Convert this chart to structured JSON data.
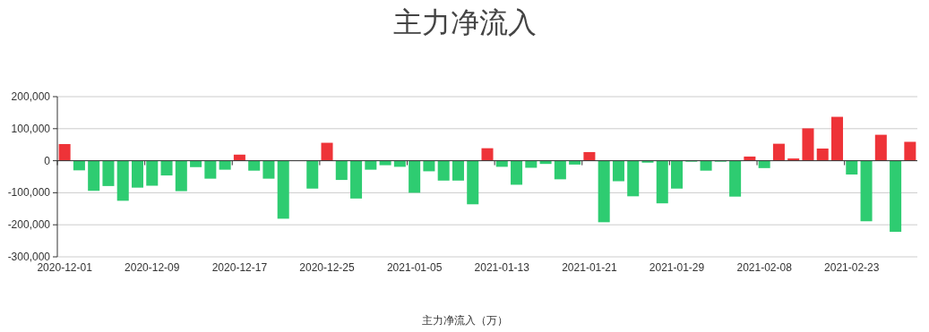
{
  "chart_data": {
    "type": "bar",
    "title": "主力净流入",
    "xlabel": "主力净流入（万）",
    "categories": [
      "2020-12-01",
      null,
      null,
      null,
      null,
      null,
      "2020-12-09",
      null,
      null,
      null,
      null,
      null,
      "2020-12-17",
      null,
      null,
      null,
      null,
      null,
      "2020-12-25",
      null,
      null,
      null,
      null,
      null,
      "2021-01-05",
      null,
      null,
      null,
      null,
      null,
      "2021-01-13",
      null,
      null,
      null,
      null,
      null,
      "2021-01-21",
      null,
      null,
      null,
      null,
      null,
      "2021-01-29",
      null,
      null,
      null,
      null,
      null,
      "2021-02-08",
      null,
      null,
      null,
      null,
      null,
      "2021-02-23",
      null,
      null,
      null,
      null
    ],
    "values": [
      52000,
      -30000,
      -94000,
      -79000,
      -125000,
      -84000,
      -78000,
      -46000,
      -95000,
      -20000,
      -56000,
      -28000,
      19000,
      -31000,
      -56000,
      -181000,
      null,
      -87000,
      56000,
      -60000,
      -118000,
      -28000,
      -14000,
      -19000,
      -100000,
      -33000,
      -62000,
      -62000,
      -136000,
      39000,
      -19000,
      -75000,
      -22000,
      -10000,
      -58000,
      -12000,
      27000,
      -192000,
      -64000,
      -111000,
      -6000,
      -133000,
      -87000,
      -3000,
      -31000,
      -3000,
      -112000,
      13000,
      -23000,
      53000,
      7000,
      101000,
      38000,
      137000,
      -43000,
      -189000,
      81000,
      -222000,
      59000
    ],
    "colors": [
      "#ee3338",
      "#2ecc71",
      "#2ecc71",
      "#2ecc71",
      "#2ecc71",
      "#2ecc71",
      "#2ecc71",
      "#2ecc71",
      "#2ecc71",
      "#2ecc71",
      "#2ecc71",
      "#2ecc71",
      "#ee3338",
      "#2ecc71",
      "#2ecc71",
      "#2ecc71",
      null,
      "#2ecc71",
      "#ee3338",
      "#2ecc71",
      "#2ecc71",
      "#2ecc71",
      "#2ecc71",
      "#2ecc71",
      "#2ecc71",
      "#2ecc71",
      "#2ecc71",
      "#2ecc71",
      "#2ecc71",
      "#ee3338",
      "#2ecc71",
      "#2ecc71",
      "#2ecc71",
      "#2ecc71",
      "#2ecc71",
      "#2ecc71",
      "#ee3338",
      "#2ecc71",
      "#2ecc71",
      "#2ecc71",
      "#2ecc71",
      "#2ecc71",
      "#2ecc71",
      "#2ecc71",
      "#2ecc71",
      "#2ecc71",
      "#2ecc71",
      "#ee3338",
      "#2ecc71",
      "#ee3338",
      "#ee3338",
      "#ee3338",
      "#ee3338",
      "#ee3338",
      "#2ecc71",
      "#2ecc71",
      "#ee3338",
      "#2ecc71",
      "#ee3338"
    ],
    "ylim": [
      -300000,
      200000
    ],
    "yticks": [
      {
        "value": -300000,
        "label": "-300,000"
      },
      {
        "value": -200000,
        "label": "-200,000"
      },
      {
        "value": -100000,
        "label": "-100,000"
      },
      0,
      {
        "value": 100000,
        "label": "100,000"
      },
      {
        "value": 200000,
        "label": "200,000"
      }
    ],
    "grid": "y"
  }
}
